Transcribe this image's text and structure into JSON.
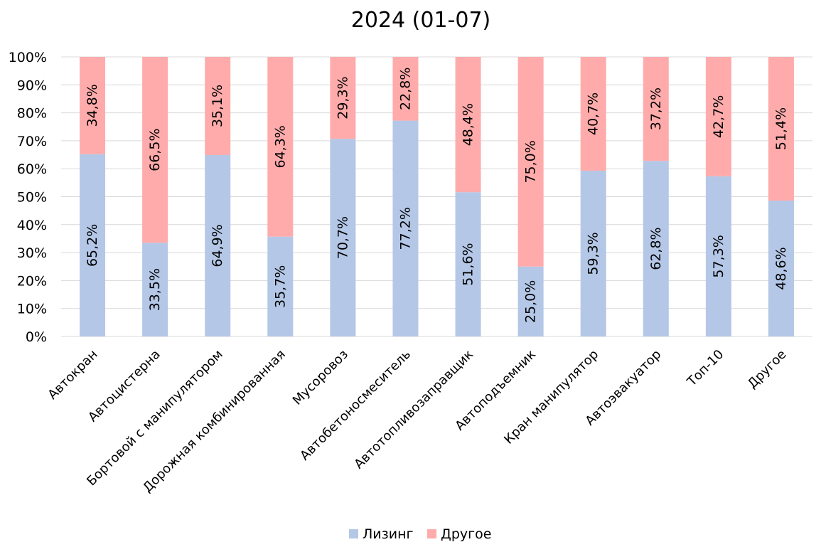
{
  "chart_data": {
    "type": "bar",
    "stacked": true,
    "title": "2024 (01-07)",
    "xlabel": "",
    "ylabel": "",
    "ylim": [
      0,
      100
    ],
    "yticks": [
      "0%",
      "10%",
      "20%",
      "30%",
      "40%",
      "50%",
      "60%",
      "70%",
      "80%",
      "90%",
      "100%"
    ],
    "grid": "horizontal",
    "legend_position": "bottom",
    "categories": [
      "Автокран",
      "Автоцистерна",
      "Бортовой с манипулятором",
      "Дорожная комбинированная",
      "Мусоровоз",
      "Автобетоносмеситель",
      "Автотопливозаправщик",
      "Автоподъемник",
      "Кран манипулятор",
      "Автоэвакуатор",
      "Топ-10",
      "Другое"
    ],
    "series": [
      {
        "name": "Лизинг",
        "color": "#b4c7e7",
        "values": [
          65.2,
          33.5,
          64.9,
          35.7,
          70.7,
          77.2,
          51.6,
          25.0,
          59.3,
          62.8,
          57.3,
          48.6
        ],
        "labels": [
          "65,2%",
          "33,5%",
          "64,9%",
          "35,7%",
          "70,7%",
          "77,2%",
          "51,6%",
          "25,0%",
          "59,3%",
          "62,8%",
          "57,3%",
          "48,6%"
        ]
      },
      {
        "name": "Другое",
        "color": "#ffabab",
        "values": [
          34.8,
          66.5,
          35.1,
          64.3,
          29.3,
          22.8,
          48.4,
          75.0,
          40.7,
          37.2,
          42.7,
          51.4
        ],
        "labels": [
          "34,8%",
          "66,5%",
          "35,1%",
          "64,3%",
          "29,3%",
          "22,8%",
          "48,4%",
          "75,0%",
          "40,7%",
          "37,2%",
          "42,7%",
          "51,4%"
        ]
      }
    ]
  }
}
